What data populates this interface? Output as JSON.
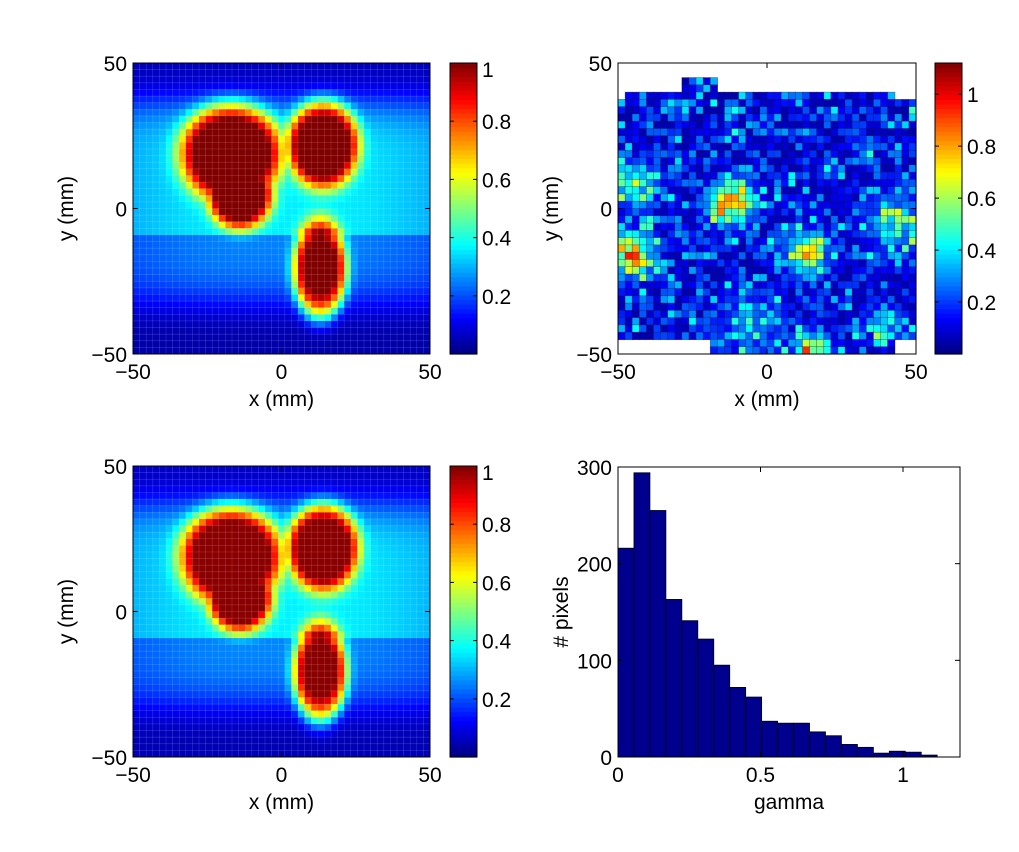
{
  "chart_data": [
    {
      "type": "heatmap",
      "panel": "top-left",
      "title": "",
      "xlabel": "x (mm)",
      "ylabel": "y (mm)",
      "xlim": [
        -50,
        50
      ],
      "ylim": [
        -50,
        50
      ],
      "xticks": [
        "−50",
        "0",
        "50"
      ],
      "yticks": [
        "−50",
        "0",
        "50"
      ],
      "colormap": "jet",
      "clim": [
        0,
        1
      ],
      "colorbar_ticks": [
        "0.2",
        "0.4",
        "0.6",
        "0.8",
        "1"
      ],
      "colorbar_tick_values": [
        0.2,
        0.4,
        0.6,
        0.8,
        1
      ]
    },
    {
      "type": "heatmap",
      "panel": "top-right",
      "title": "",
      "xlabel": "x (mm)",
      "ylabel": "y (mm)",
      "xlim": [
        -50,
        50
      ],
      "ylim": [
        -50,
        50
      ],
      "xticks": [
        "−50",
        "0",
        "50"
      ],
      "yticks": [
        "−50",
        "0",
        "50"
      ],
      "colormap": "jet",
      "clim": [
        0,
        1.12
      ],
      "colorbar_ticks": [
        "0.2",
        "0.4",
        "0.6",
        "0.8",
        "1"
      ],
      "colorbar_tick_values": [
        0.2,
        0.4,
        0.6,
        0.8,
        1
      ]
    },
    {
      "type": "heatmap",
      "panel": "bottom-left",
      "title": "",
      "xlabel": "x (mm)",
      "ylabel": "y (mm)",
      "xlim": [
        -50,
        50
      ],
      "ylim": [
        -50,
        50
      ],
      "xticks": [
        "−50",
        "0",
        "50"
      ],
      "yticks": [
        "−50",
        "0",
        "50"
      ],
      "colormap": "jet",
      "clim": [
        0,
        1
      ],
      "colorbar_ticks": [
        "0.2",
        "0.4",
        "0.6",
        "0.8",
        "1"
      ],
      "colorbar_tick_values": [
        0.2,
        0.4,
        0.6,
        0.8,
        1
      ]
    },
    {
      "type": "bar",
      "panel": "bottom-right",
      "title": "",
      "xlabel": "gamma",
      "ylabel": "# pixels",
      "xlim": [
        0,
        1.2
      ],
      "ylim": [
        0,
        300
      ],
      "xticks": [
        "0",
        "0.5",
        "1"
      ],
      "xtick_values": [
        0,
        0.5,
        1
      ],
      "yticks": [
        "0",
        "100",
        "200",
        "300"
      ],
      "ytick_values": [
        0,
        100,
        200,
        300
      ],
      "bin_width": 0.056,
      "bin_centers": [
        0.028,
        0.084,
        0.14,
        0.196,
        0.252,
        0.308,
        0.364,
        0.42,
        0.476,
        0.532,
        0.588,
        0.644,
        0.7,
        0.756,
        0.812,
        0.868,
        0.924,
        0.98,
        1.036,
        1.092
      ],
      "values": [
        216,
        294,
        255,
        163,
        141,
        122,
        95,
        72,
        62,
        37,
        35,
        35,
        26,
        22,
        13,
        10,
        4,
        6,
        5,
        2
      ],
      "bar_color": "#00008f"
    }
  ]
}
